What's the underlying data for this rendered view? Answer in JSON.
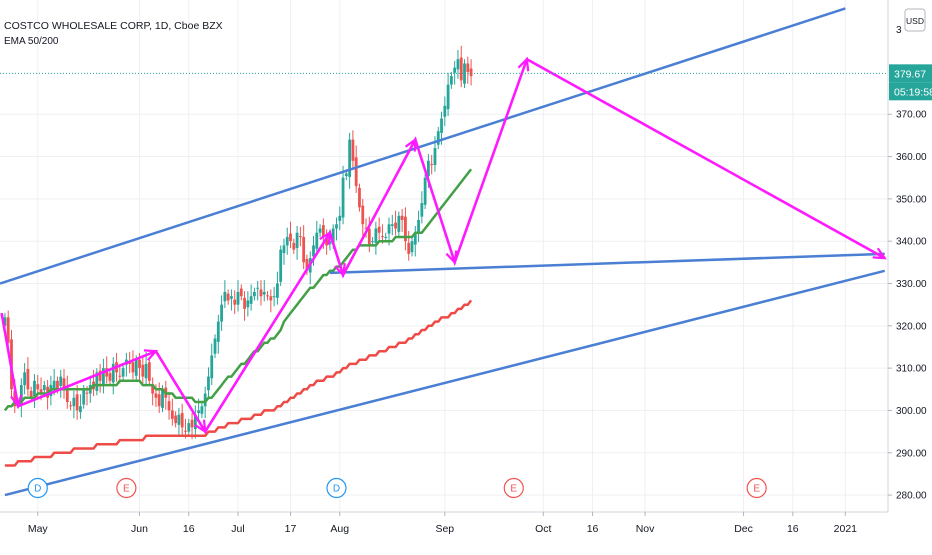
{
  "chart_data": {
    "type": "candlestick",
    "symbol_title": "COSTCO WHOLESALE CORP, 1D, Cboe BZX",
    "indicator_label": "EMA 50/200",
    "currency": "USD",
    "price_tag": "379.67",
    "countdown_tag": "05:19:58",
    "ylim": [
      276,
      397
    ],
    "y_ticks": [
      280,
      290,
      300,
      310,
      320,
      330,
      340,
      350,
      360,
      370
    ],
    "y_tick_labels": [
      "280.00",
      "290.00",
      "300.00",
      "310.00",
      "320.00",
      "330.00",
      "340.00",
      "350.00",
      "360.00",
      "370.00"
    ],
    "x_ticks": [
      {
        "label": "May",
        "day": 10
      },
      {
        "label": "Jun",
        "day": 41
      },
      {
        "label": "16",
        "day": 56
      },
      {
        "label": "Jul",
        "day": 71
      },
      {
        "label": "17",
        "day": 87
      },
      {
        "label": "Aug",
        "day": 102
      },
      {
        "label": "Sep",
        "day": 134
      },
      {
        "label": "Oct",
        "day": 164
      },
      {
        "label": "16",
        "day": 179
      },
      {
        "label": "Nov",
        "day": 195
      },
      {
        "label": "Dec",
        "day": 225
      },
      {
        "label": "16",
        "day": 240
      },
      {
        "label": "2021",
        "day": 256
      }
    ],
    "xlim": [
      -1.5,
      269
    ],
    "events": [
      {
        "label": "D",
        "day": 10,
        "color": "#2196f3"
      },
      {
        "label": "E",
        "day": 37,
        "color": "#ef5350"
      },
      {
        "label": "D",
        "day": 101,
        "color": "#2196f3"
      },
      {
        "label": "E",
        "day": 155,
        "color": "#ef5350"
      },
      {
        "label": "E",
        "day": 229,
        "color": "#ef5350"
      }
    ],
    "candles_close": [
      322,
      316,
      305,
      301,
      302,
      306,
      309,
      305,
      303,
      307,
      305,
      304,
      306,
      303,
      306,
      307,
      305,
      308,
      305,
      302,
      301,
      303,
      300,
      301,
      305,
      304,
      306,
      305,
      309,
      307,
      310,
      308,
      307,
      311,
      309,
      308,
      310,
      312,
      311,
      309,
      312,
      310,
      308,
      311,
      307,
      304,
      303,
      301,
      305,
      303,
      300,
      298,
      297,
      299,
      296,
      295,
      297,
      296,
      299,
      300,
      301,
      304,
      308,
      313,
      317,
      321,
      325,
      328,
      326,
      327,
      325,
      328,
      327,
      324,
      326,
      327,
      328,
      329,
      327,
      328,
      327,
      326,
      327,
      330,
      338,
      339,
      341,
      340,
      338,
      342,
      341,
      335,
      333,
      336,
      339,
      342,
      343,
      341,
      339,
      340,
      343,
      344,
      346,
      355,
      356,
      364,
      359,
      353,
      348,
      344,
      343,
      339,
      340,
      343,
      342,
      341,
      341,
      344,
      344,
      343,
      346,
      345,
      340,
      337,
      340,
      342,
      345,
      349,
      355,
      359,
      358,
      362,
      366,
      369,
      372,
      377,
      379,
      381,
      383,
      378,
      382,
      380,
      379
    ],
    "ema50": [
      300,
      301,
      301,
      302,
      302,
      302,
      303,
      303,
      303,
      303,
      304,
      304,
      304,
      304,
      305,
      305,
      305,
      305,
      305,
      305,
      305,
      305,
      305,
      305,
      305,
      305,
      305,
      306,
      306,
      306,
      306,
      306,
      306,
      306,
      306,
      307,
      307,
      307,
      307,
      307,
      307,
      307,
      306,
      306,
      306,
      306,
      305,
      305,
      305,
      304,
      304,
      304,
      303,
      303,
      303,
      303,
      303,
      303,
      302,
      302,
      302,
      302,
      303,
      303,
      304,
      305,
      306,
      307,
      308,
      308,
      309,
      310,
      311,
      311,
      312,
      313,
      314,
      314,
      315,
      316,
      316,
      317,
      317,
      318,
      319,
      321,
      322,
      323,
      324,
      325,
      326,
      327,
      328,
      329,
      329,
      330,
      331,
      332,
      332,
      333,
      333,
      334,
      334,
      335,
      336,
      337,
      338,
      338,
      339,
      339,
      339,
      339,
      339,
      339,
      340,
      340,
      340,
      340,
      340,
      341,
      341,
      341,
      341,
      341,
      341,
      342,
      342,
      342,
      343,
      344,
      345,
      346,
      347,
      348,
      349,
      350,
      351,
      352,
      353,
      354,
      355,
      356,
      357
    ],
    "ema200": [
      287,
      287,
      287,
      287,
      288,
      288,
      288,
      288,
      288,
      289,
      289,
      289,
      289,
      289,
      289,
      290,
      290,
      290,
      290,
      290,
      290,
      291,
      291,
      291,
      291,
      291,
      291,
      291,
      292,
      292,
      292,
      292,
      292,
      292,
      292,
      293,
      293,
      293,
      293,
      293,
      293,
      293,
      293,
      294,
      294,
      294,
      294,
      294,
      294,
      294,
      294,
      294,
      294,
      294,
      294,
      294,
      294,
      294,
      294,
      294,
      294,
      294,
      295,
      295,
      295,
      296,
      296,
      296,
      297,
      297,
      297,
      297,
      298,
      298,
      298,
      298,
      299,
      299,
      299,
      300,
      300,
      300,
      300,
      301,
      301,
      302,
      302,
      303,
      303,
      304,
      304,
      305,
      305,
      306,
      306,
      307,
      307,
      307,
      308,
      308,
      308,
      309,
      309,
      310,
      310,
      311,
      311,
      311,
      312,
      312,
      312,
      313,
      313,
      313,
      314,
      314,
      314,
      315,
      315,
      315,
      316,
      316,
      316,
      317,
      317,
      318,
      318,
      319,
      319,
      320,
      320,
      321,
      321,
      322,
      322,
      322,
      323,
      323,
      324,
      324,
      325,
      325,
      326
    ],
    "channel_upper": [
      [
        -1.5,
        330
      ],
      [
        256,
        395
      ]
    ],
    "channel_lower": [
      [
        0,
        280
      ],
      [
        268,
        333
      ]
    ],
    "neckline": [
      [
        99,
        332.5
      ],
      [
        268,
        337
      ]
    ],
    "zigzag_path": [
      [
        -1,
        323
      ],
      [
        4,
        301
      ],
      [
        46,
        314
      ],
      [
        61,
        295
      ],
      [
        99,
        342
      ],
      [
        103,
        332
      ],
      [
        125,
        364
      ],
      [
        137,
        335
      ],
      [
        159,
        383
      ],
      [
        268,
        336
      ]
    ]
  }
}
